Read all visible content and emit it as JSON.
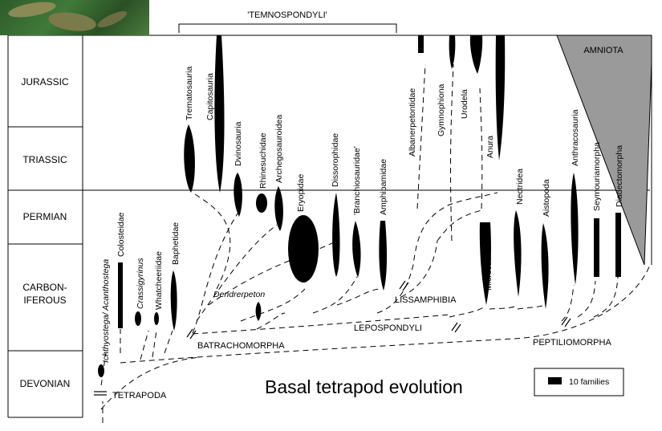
{
  "title": "Basal tetrapod evolution",
  "periods": [
    "JURASSIC",
    "TRIASSIC",
    "PERMIAN",
    "CARBON-",
    "IFEROUS",
    "DEVONIAN"
  ],
  "groups": {
    "temnospondyli": "'TEMNOSPONDYLI'",
    "amniota": "AMNIOTA",
    "tetrapoda": "TETRAPODA",
    "batrachomorpha": "BATRACHOMORPHA",
    "lissamphibia": "LISSAMPHIBIA",
    "lepospondyli": "LEPOSPONDYLI",
    "peptiliomorpha": "PEPTILIOMORPHA"
  },
  "taxa": [
    "Ichthyostega/ Acanthostega",
    "Colosteidae",
    "Crassigyrinus",
    "Whatcheeriidae",
    "Baphetidae",
    "Trematosauria",
    "Capitosauria",
    "Dvinosauria",
    "Rhinesuchidae",
    "Archegosauroidea",
    "Eryopidae",
    "Dissorophidae",
    "'Branchiosauridae'",
    "Amphibamidae",
    "Albanerpetontidae",
    "Gymnophiona",
    "Urodela",
    "Anura",
    "Microsauria",
    "Nectridea",
    "Aistopoda",
    "Anthracosauria",
    "Seymouriamorpha",
    "Diadectomorpha",
    "Dendrerpeton"
  ],
  "legend": {
    "label": "10 families"
  },
  "colors": {
    "amniota_fill": "#9a9a9a",
    "spindle": "#000000"
  }
}
